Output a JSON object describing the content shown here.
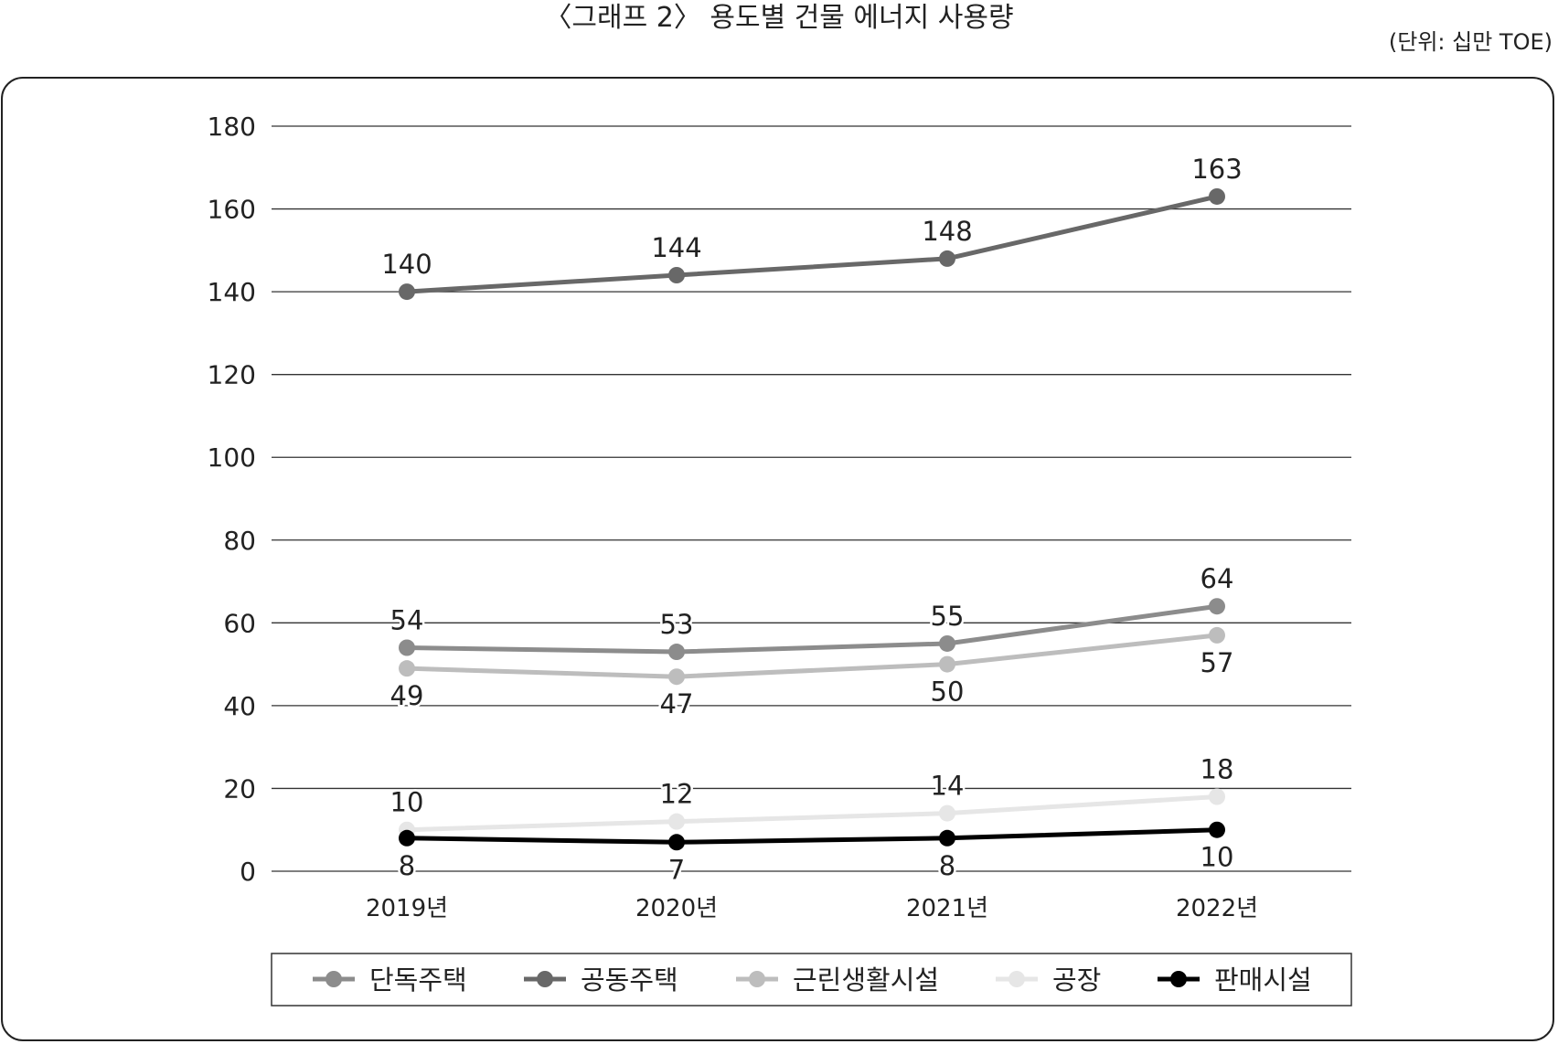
{
  "title": "〈그래프 2〉 용도별 건물 에너지 사용량",
  "unit": "(단위: 십만 TOE)",
  "chart_data": {
    "type": "line",
    "categories": [
      "2019년",
      "2020년",
      "2021년",
      "2022년"
    ],
    "ylim": [
      0,
      180
    ],
    "yticks": [
      0,
      20,
      40,
      60,
      80,
      100,
      120,
      140,
      160,
      180
    ],
    "grid": true,
    "legend_position": "bottom",
    "series": [
      {
        "name": "단독주택",
        "values": [
          54,
          53,
          55,
          64
        ],
        "color": "#8c8c8c",
        "label_position": "above"
      },
      {
        "name": "공동주택",
        "values": [
          140,
          144,
          148,
          163
        ],
        "color": "#686868",
        "label_position": "above"
      },
      {
        "name": "근린생활시설",
        "values": [
          49,
          47,
          50,
          57
        ],
        "color": "#bdbdbd",
        "label_position": "below"
      },
      {
        "name": "공장",
        "values": [
          10,
          12,
          14,
          18
        ],
        "color": "#e6e6e6",
        "label_position": "above"
      },
      {
        "name": "판매시설",
        "values": [
          8,
          7,
          8,
          10
        ],
        "color": "#000000",
        "label_position": "below"
      }
    ]
  }
}
